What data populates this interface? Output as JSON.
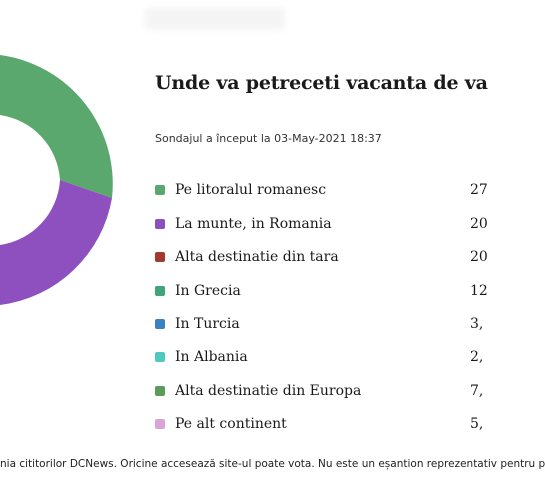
{
  "poll": {
    "title": "Unde va petreceti vacanta de va",
    "started": "Sondajul a început la 03-May-2021 18:37",
    "options": [
      {
        "label": "Pe litoralul romanesc",
        "value": "27",
        "color": "#5aa86e"
      },
      {
        "label": "La munte, in Romania",
        "value": "20",
        "color": "#8e4fbf"
      },
      {
        "label": "Alta destinatie din tara",
        "value": "20",
        "color": "#a33a32"
      },
      {
        "label": "In Grecia",
        "value": "12",
        "color": "#3fa47a"
      },
      {
        "label": "In Turcia",
        "value": "3,",
        "color": "#3b82c4"
      },
      {
        "label": "In Albania",
        "value": "2,",
        "color": "#4fc9c0"
      },
      {
        "label": "Alta destinatie din Europa",
        "value": "7,",
        "color": "#5e9a5a"
      },
      {
        "label": "Pe alt continent",
        "value": "5,",
        "color": "#d8a4d8"
      }
    ]
  },
  "footer": "nia cititorilor DCNews. Oricine accesează site-ul poate vota. Nu este un eșantion reprezentativ pentru p"
}
